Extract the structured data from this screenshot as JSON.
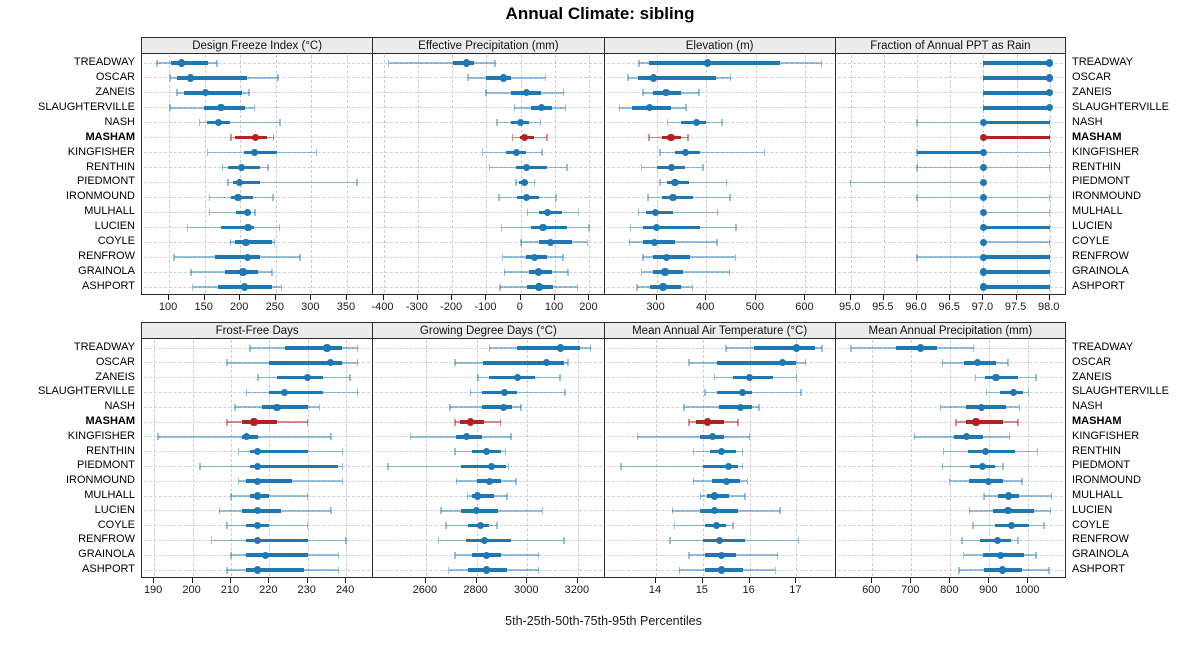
{
  "title": "Annual Climate: sibling",
  "caption": "5th-25th-50th-75th-95th Percentiles",
  "sites": [
    "TREADWAY",
    "OSCAR",
    "ZANEIS",
    "SLAUGHTERVILLE",
    "NASH",
    "MASHAM",
    "KINGFISHER",
    "RENTHIN",
    "PIEDMONT",
    "IRONMOUND",
    "MULHALL",
    "LUCIEN",
    "COYLE",
    "RENFROW",
    "GRAINOLA",
    "ASHPORT"
  ],
  "highlight_site": "MASHAM",
  "colors": {
    "primary": "#1f77b4",
    "primary_light": "rgba(31,119,180,0.45)",
    "highlight": "#b22222",
    "highlight_light": "rgba(178,34,34,0.5)",
    "grid": "#cdcdcd",
    "strip_bg": "#ececec",
    "border": "#2b2b2b"
  },
  "chart_data": {
    "type": "dotplot-percentiles",
    "percentiles": [
      5,
      25,
      50,
      75,
      95
    ],
    "layout": {
      "rows": 2,
      "cols": 4,
      "legend": "none",
      "grid": "dashed"
    },
    "panels": [
      {
        "title": "Design Freeze Index (°C)",
        "row": 0,
        "col": 0,
        "xlim": [
          63.3,
          385.6
        ],
        "ticks": [
          100,
          150,
          200,
          250,
          300,
          350
        ],
        "tick_labels": [
          "100",
          "150",
          "200",
          "250",
          "300",
          "350"
        ],
        "values": [
          [
            83,
            103,
            118,
            154,
            167
          ],
          [
            101,
            111,
            130,
            209,
            253
          ],
          [
            111,
            121,
            151,
            202,
            212
          ],
          [
            101,
            149,
            173,
            207,
            220
          ],
          [
            143,
            153,
            170,
            186,
            256
          ],
          [
            187,
            193,
            221,
            237,
            247
          ],
          [
            154,
            205,
            220,
            252,
            307
          ],
          [
            175,
            183,
            202,
            228,
            239
          ],
          [
            183,
            190,
            199,
            228,
            364
          ],
          [
            157,
            187,
            197,
            218,
            246
          ],
          [
            157,
            194,
            210,
            215,
            221
          ],
          [
            126,
            173,
            211,
            220,
            255
          ],
          [
            186,
            193,
            208,
            245,
            248
          ],
          [
            107,
            164,
            210,
            228,
            284
          ],
          [
            131,
            178,
            204,
            225,
            245
          ],
          [
            133,
            169,
            206,
            245,
            258
          ]
        ]
      },
      {
        "title": "Effective Precipitation (mm)",
        "row": 0,
        "col": 1,
        "xlim": [
          -427,
          241
        ],
        "ticks": [
          -400,
          -300,
          -200,
          -100,
          0,
          100,
          200
        ],
        "tick_labels": [
          "-400",
          "-300",
          "-200",
          "-100",
          "0",
          "100",
          "200"
        ],
        "values": [
          [
            -385,
            -197,
            -157,
            -135,
            -75
          ],
          [
            -154,
            -101,
            -51,
            -29,
            72
          ],
          [
            -101,
            -29,
            16,
            60,
            125
          ],
          [
            -19,
            29,
            60,
            91,
            130
          ],
          [
            -69,
            -29,
            0,
            24,
            58
          ],
          [
            -24,
            -2,
            12,
            38,
            77
          ],
          [
            -111,
            -43,
            -12,
            14,
            62
          ],
          [
            -91,
            -14,
            16,
            77,
            135
          ],
          [
            -14,
            -5,
            10,
            21,
            40
          ],
          [
            -64,
            -12,
            16,
            53,
            103
          ],
          [
            19,
            53,
            77,
            120,
            168
          ],
          [
            -56,
            29,
            65,
            135,
            199
          ],
          [
            0,
            53,
            87,
            149,
            194
          ],
          [
            -53,
            14,
            41,
            77,
            123
          ],
          [
            -48,
            24,
            51,
            91,
            137
          ],
          [
            -60,
            19,
            53,
            94,
            165
          ]
        ]
      },
      {
        "title": "Elevation (m)",
        "row": 0,
        "col": 2,
        "xlim": [
          197,
          659
        ],
        "ticks": [
          300,
          400,
          500,
          600
        ],
        "tick_labels": [
          "300",
          "400",
          "500",
          "600"
        ],
        "values": [
          [
            265,
            285,
            403,
            549,
            632
          ],
          [
            242,
            262,
            293,
            420,
            449
          ],
          [
            273,
            293,
            319,
            350,
            385
          ],
          [
            225,
            250,
            285,
            330,
            359
          ],
          [
            322,
            350,
            380,
            400,
            432
          ],
          [
            285,
            310,
            329,
            350,
            363
          ],
          [
            307,
            337,
            358,
            387,
            517
          ],
          [
            270,
            300,
            330,
            358,
            393
          ],
          [
            307,
            320,
            337,
            365,
            441
          ],
          [
            283,
            310,
            333,
            373,
            448
          ],
          [
            263,
            279,
            297,
            333,
            423
          ],
          [
            247,
            272,
            300,
            387,
            460
          ],
          [
            245,
            273,
            295,
            337,
            422
          ],
          [
            273,
            293,
            320,
            367,
            459
          ],
          [
            270,
            293,
            317,
            353,
            447
          ],
          [
            260,
            287,
            313,
            350,
            372
          ]
        ]
      },
      {
        "title": "Fraction of Annual PPT as Rain",
        "row": 0,
        "col": 3,
        "xlim": [
          94.79,
          98.23
        ],
        "ticks": [
          95.0,
          95.5,
          96.0,
          96.5,
          97.0,
          97.5,
          98.0
        ],
        "tick_labels": [
          "95.0",
          "95.5",
          "96.0",
          "96.5",
          "97.0",
          "97.5",
          "98.0"
        ],
        "values": [
          [
            97,
            97,
            98,
            98,
            98
          ],
          [
            97,
            97,
            98,
            98,
            98
          ],
          [
            97,
            97,
            98,
            98,
            98
          ],
          [
            97,
            97,
            98,
            98,
            98
          ],
          [
            96,
            97,
            97,
            98,
            98
          ],
          [
            97,
            97,
            97,
            98,
            98
          ],
          [
            96,
            96,
            97,
            97,
            98
          ],
          [
            96,
            97,
            97,
            97,
            98
          ],
          [
            95,
            97,
            97,
            97,
            97
          ],
          [
            96,
            97,
            97,
            97,
            98
          ],
          [
            97,
            97,
            97,
            97,
            98
          ],
          [
            97,
            97,
            97,
            98,
            98
          ],
          [
            97,
            97,
            97,
            97,
            98
          ],
          [
            96,
            97,
            97,
            98,
            98
          ],
          [
            97,
            97,
            97,
            98,
            98
          ],
          [
            97,
            97,
            97,
            98,
            98
          ]
        ]
      },
      {
        "title": "Frost-Free Days",
        "row": 1,
        "col": 0,
        "xlim": [
          187.1,
          246.8
        ],
        "ticks": [
          190,
          200,
          210,
          220,
          230,
          240
        ],
        "tick_labels": [
          "190",
          "200",
          "210",
          "220",
          "230",
          "240"
        ],
        "values": [
          [
            215,
            224,
            235,
            239,
            243
          ],
          [
            209,
            220,
            236,
            239,
            243
          ],
          [
            217,
            222,
            230,
            234,
            241
          ],
          [
            214,
            220,
            224,
            234,
            243
          ],
          [
            211,
            218,
            222,
            230,
            233
          ],
          [
            209,
            213,
            216,
            222,
            230
          ],
          [
            191,
            213,
            214,
            217,
            236
          ],
          [
            212,
            215,
            217,
            230,
            239
          ],
          [
            202,
            215,
            217,
            238,
            239
          ],
          [
            212,
            214,
            217,
            226,
            239
          ],
          [
            210,
            215,
            217,
            220,
            230
          ],
          [
            207,
            213,
            217,
            223,
            236
          ],
          [
            209,
            214,
            217,
            220,
            230
          ],
          [
            205,
            214,
            217,
            230,
            240
          ],
          [
            210,
            214,
            219,
            230,
            238
          ],
          [
            209,
            214,
            217,
            229,
            238
          ]
        ]
      },
      {
        "title": "Growing Degree Days (°C)",
        "row": 1,
        "col": 1,
        "xlim": [
          2396,
          3301
        ],
        "ticks": [
          2600,
          2800,
          3000,
          3200
        ],
        "tick_labels": [
          "2600",
          "2800",
          "3000",
          "3200"
        ],
        "values": [
          [
            2850,
            2960,
            3130,
            3210,
            3250
          ],
          [
            2715,
            2825,
            3075,
            3145,
            3160
          ],
          [
            2805,
            2850,
            2960,
            3030,
            3130
          ],
          [
            2775,
            2820,
            2910,
            2960,
            3150
          ],
          [
            2695,
            2820,
            2905,
            2940,
            2975
          ],
          [
            2715,
            2735,
            2775,
            2830,
            2895
          ],
          [
            2540,
            2720,
            2760,
            2820,
            2935
          ],
          [
            2715,
            2780,
            2840,
            2895,
            2915
          ],
          [
            2450,
            2740,
            2860,
            2915,
            2925
          ],
          [
            2720,
            2800,
            2850,
            2895,
            2955
          ],
          [
            2765,
            2780,
            2805,
            2870,
            2920
          ],
          [
            2660,
            2740,
            2800,
            2885,
            3060
          ],
          [
            2680,
            2765,
            2815,
            2850,
            2880
          ],
          [
            2650,
            2760,
            2830,
            2935,
            3145
          ],
          [
            2715,
            2780,
            2840,
            2895,
            3045
          ],
          [
            2690,
            2765,
            2840,
            2920,
            3045
          ]
        ]
      },
      {
        "title": "Mean Annual Air Temperature (°C)",
        "row": 1,
        "col": 2,
        "xlim": [
          12.92,
          17.82
        ],
        "ticks": [
          14,
          15,
          16,
          17
        ],
        "tick_labels": [
          "14",
          "15",
          "16",
          "17"
        ],
        "values": [
          [
            15.5,
            16.1,
            17.0,
            17.4,
            17.55
          ],
          [
            14.7,
            15.3,
            16.7,
            17.0,
            17.2
          ],
          [
            15.25,
            15.65,
            16.0,
            16.5,
            17.0
          ],
          [
            15.05,
            15.3,
            15.85,
            16.05,
            17.1
          ],
          [
            14.6,
            15.35,
            15.8,
            16.05,
            16.2
          ],
          [
            14.7,
            14.85,
            15.1,
            15.45,
            15.75
          ],
          [
            13.6,
            14.95,
            15.2,
            15.45,
            16.0
          ],
          [
            14.8,
            15.15,
            15.4,
            15.7,
            15.85
          ],
          [
            13.25,
            15.0,
            15.55,
            15.75,
            15.85
          ],
          [
            14.8,
            15.2,
            15.5,
            15.8,
            15.95
          ],
          [
            14.95,
            15.1,
            15.25,
            15.55,
            15.9
          ],
          [
            14.35,
            14.95,
            15.25,
            15.75,
            16.65
          ],
          [
            14.4,
            15.05,
            15.3,
            15.5,
            15.65
          ],
          [
            14.3,
            15.0,
            15.35,
            15.9,
            17.05
          ],
          [
            14.7,
            15.05,
            15.4,
            15.7,
            16.6
          ],
          [
            14.5,
            15.05,
            15.4,
            15.85,
            16.55
          ]
        ]
      },
      {
        "title": "Mean Annual Precipitation (mm)",
        "row": 1,
        "col": 3,
        "xlim": [
          509,
          1094
        ],
        "ticks": [
          600,
          700,
          800,
          900,
          1000
        ],
        "tick_labels": [
          "600",
          "700",
          "800",
          "900",
          "1000"
        ],
        "values": [
          [
            545,
            660,
            723,
            767,
            860
          ],
          [
            780,
            835,
            870,
            918,
            948
          ],
          [
            865,
            890,
            917,
            973,
            1020
          ],
          [
            893,
            927,
            963,
            986,
            1000
          ],
          [
            775,
            840,
            880,
            944,
            977
          ],
          [
            815,
            841,
            866,
            935,
            973
          ],
          [
            708,
            809,
            841,
            885,
            952
          ],
          [
            782,
            845,
            891,
            965,
            1024
          ],
          [
            780,
            851,
            883,
            914,
            935
          ],
          [
            798,
            849,
            897,
            934,
            984
          ],
          [
            887,
            923,
            950,
            977,
            1060
          ],
          [
            849,
            910,
            948,
            1015,
            1057
          ],
          [
            858,
            914,
            956,
            1003,
            1040
          ],
          [
            830,
            876,
            921,
            956,
            973
          ],
          [
            834,
            885,
            929,
            988,
            1020
          ],
          [
            822,
            887,
            933,
            985,
            1053
          ]
        ]
      }
    ]
  }
}
